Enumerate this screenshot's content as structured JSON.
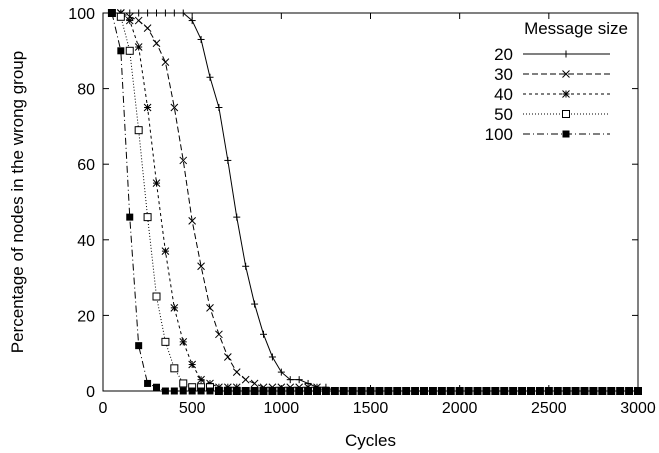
{
  "chart_data": {
    "type": "line",
    "title": "",
    "xlabel": "Cycles",
    "ylabel": "Percentage of nodes in the wrong group",
    "xlim": [
      0,
      3000
    ],
    "ylim": [
      0,
      100
    ],
    "xticks": [
      0,
      500,
      1000,
      1500,
      2000,
      2500,
      3000
    ],
    "yticks": [
      0,
      20,
      40,
      60,
      80,
      100
    ],
    "grid": false,
    "legend_title": "Message size",
    "legend_position": "top-right",
    "series": [
      {
        "name": "20",
        "marker": "plus",
        "dash": "solid",
        "x": [
          50,
          100,
          150,
          200,
          250,
          300,
          350,
          400,
          450,
          500,
          550,
          600,
          650,
          700,
          750,
          800,
          850,
          900,
          950,
          1000,
          1050,
          1100,
          1150,
          1200,
          1250,
          1300,
          1350,
          1400,
          1450,
          1500,
          1550,
          1600,
          1650,
          1700,
          1750,
          1800,
          1850,
          1900,
          1950,
          2000,
          2050,
          2100,
          2150,
          2200,
          2250,
          2300,
          2350,
          2400,
          2450,
          2500,
          2550,
          2600,
          2650,
          2700,
          2750,
          2800,
          2850,
          2900,
          2950,
          3000
        ],
        "y": [
          100,
          100,
          100,
          100,
          100,
          100,
          100,
          100,
          100,
          98,
          93,
          83,
          75,
          61,
          46,
          33,
          23,
          15,
          9,
          5,
          3,
          3,
          2,
          1,
          1,
          0,
          0,
          0,
          0,
          0,
          0,
          0,
          0,
          0,
          0,
          0,
          0,
          0,
          0,
          0,
          0,
          0,
          0,
          0,
          0,
          0,
          0,
          0,
          0,
          0,
          0,
          0,
          0,
          0,
          0,
          0,
          0,
          0,
          0,
          0
        ]
      },
      {
        "name": "30",
        "marker": "x",
        "dash": "dashed",
        "x": [
          50,
          100,
          150,
          200,
          250,
          300,
          350,
          400,
          450,
          500,
          550,
          600,
          650,
          700,
          750,
          800,
          850,
          900,
          950,
          1000,
          1050,
          1100,
          1150,
          1200,
          1250,
          1300,
          1350,
          1400,
          1450,
          1500,
          1550,
          1600,
          1650,
          1700,
          1750,
          1800,
          1850,
          1900,
          1950,
          2000,
          2050,
          2100,
          2150,
          2200,
          2250,
          2300,
          2350,
          2400,
          2450,
          2500,
          2550,
          2600,
          2650,
          2700,
          2750,
          2800,
          2850,
          2900,
          2950,
          3000
        ],
        "y": [
          100,
          100,
          99,
          98,
          96,
          92,
          87,
          75,
          61,
          45,
          33,
          22,
          15,
          9,
          5,
          3,
          2,
          1,
          1,
          1,
          1,
          1,
          1,
          1,
          0,
          0,
          0,
          0,
          0,
          0,
          0,
          0,
          0,
          0,
          0,
          0,
          0,
          0,
          0,
          0,
          0,
          0,
          0,
          0,
          0,
          0,
          0,
          0,
          0,
          0,
          0,
          0,
          0,
          0,
          0,
          0,
          0,
          0,
          0,
          0
        ]
      },
      {
        "name": "40",
        "marker": "star",
        "dash": "dotted-coarse",
        "x": [
          50,
          100,
          150,
          200,
          250,
          300,
          350,
          400,
          450,
          500,
          550,
          600,
          650,
          700,
          750,
          800,
          850,
          900,
          950,
          1000,
          1050,
          1100,
          1150,
          1200,
          1250,
          1300,
          1350,
          1400,
          1450,
          1500,
          1550,
          1600,
          1650,
          1700,
          1750,
          1800,
          1850,
          1900,
          1950,
          2000,
          2050,
          2100,
          2150,
          2200,
          2250,
          2300,
          2350,
          2400,
          2450,
          2500,
          2550,
          2600,
          2650,
          2700,
          2750,
          2800,
          2850,
          2900,
          2950,
          3000
        ],
        "y": [
          100,
          100,
          98,
          91,
          75,
          55,
          37,
          22,
          13,
          7,
          3,
          2,
          1,
          1,
          1,
          0,
          0,
          0,
          0,
          0,
          0,
          0,
          0,
          0,
          0,
          0,
          0,
          0,
          0,
          0,
          0,
          0,
          0,
          0,
          0,
          0,
          0,
          0,
          0,
          0,
          0,
          0,
          0,
          0,
          0,
          0,
          0,
          0,
          0,
          0,
          0,
          0,
          0,
          0,
          0,
          0,
          0,
          0,
          0,
          0
        ]
      },
      {
        "name": "50",
        "marker": "open-square",
        "dash": "dotted",
        "x": [
          50,
          100,
          150,
          200,
          250,
          300,
          350,
          400,
          450,
          500,
          550,
          600,
          650,
          700,
          750,
          800,
          850,
          900,
          950,
          1000,
          1050,
          1100,
          1150,
          1200,
          1250,
          1300,
          1350,
          1400,
          1450,
          1500,
          1550,
          1600,
          1650,
          1700,
          1750,
          1800,
          1850,
          1900,
          1950,
          2000,
          2050,
          2100,
          2150,
          2200,
          2250,
          2300,
          2350,
          2400,
          2450,
          2500,
          2550,
          2600,
          2650,
          2700,
          2750,
          2800,
          2850,
          2900,
          2950,
          3000
        ],
        "y": [
          100,
          99,
          90,
          69,
          46,
          25,
          13,
          6,
          2,
          1,
          1,
          1,
          0,
          0,
          0,
          0,
          0,
          0,
          0,
          0,
          0,
          0,
          0,
          0,
          0,
          0,
          0,
          0,
          0,
          0,
          0,
          0,
          0,
          0,
          0,
          0,
          0,
          0,
          0,
          0,
          0,
          0,
          0,
          0,
          0,
          0,
          0,
          0,
          0,
          0,
          0,
          0,
          0,
          0,
          0,
          0,
          0,
          0,
          0,
          0
        ]
      },
      {
        "name": "100",
        "marker": "filled-square",
        "dash": "dash-dot",
        "x": [
          50,
          100,
          150,
          200,
          250,
          300,
          350,
          400,
          450,
          500,
          550,
          600,
          650,
          700,
          750,
          800,
          850,
          900,
          950,
          1000,
          1050,
          1100,
          1150,
          1200,
          1250,
          1300,
          1350,
          1400,
          1450,
          1500,
          1550,
          1600,
          1650,
          1700,
          1750,
          1800,
          1850,
          1900,
          1950,
          2000,
          2050,
          2100,
          2150,
          2200,
          2250,
          2300,
          2350,
          2400,
          2450,
          2500,
          2550,
          2600,
          2650,
          2700,
          2750,
          2800,
          2850,
          2900,
          2950,
          3000
        ],
        "y": [
          100,
          90,
          46,
          12,
          2,
          1,
          0,
          0,
          0,
          0,
          0,
          0,
          0,
          0,
          0,
          0,
          0,
          0,
          0,
          0,
          0,
          0,
          0,
          0,
          0,
          0,
          0,
          0,
          0,
          0,
          0,
          0,
          0,
          0,
          0,
          0,
          0,
          0,
          0,
          0,
          0,
          0,
          0,
          0,
          0,
          0,
          0,
          0,
          0,
          0,
          0,
          0,
          0,
          0,
          0,
          0,
          0,
          0,
          0,
          0
        ]
      }
    ]
  }
}
